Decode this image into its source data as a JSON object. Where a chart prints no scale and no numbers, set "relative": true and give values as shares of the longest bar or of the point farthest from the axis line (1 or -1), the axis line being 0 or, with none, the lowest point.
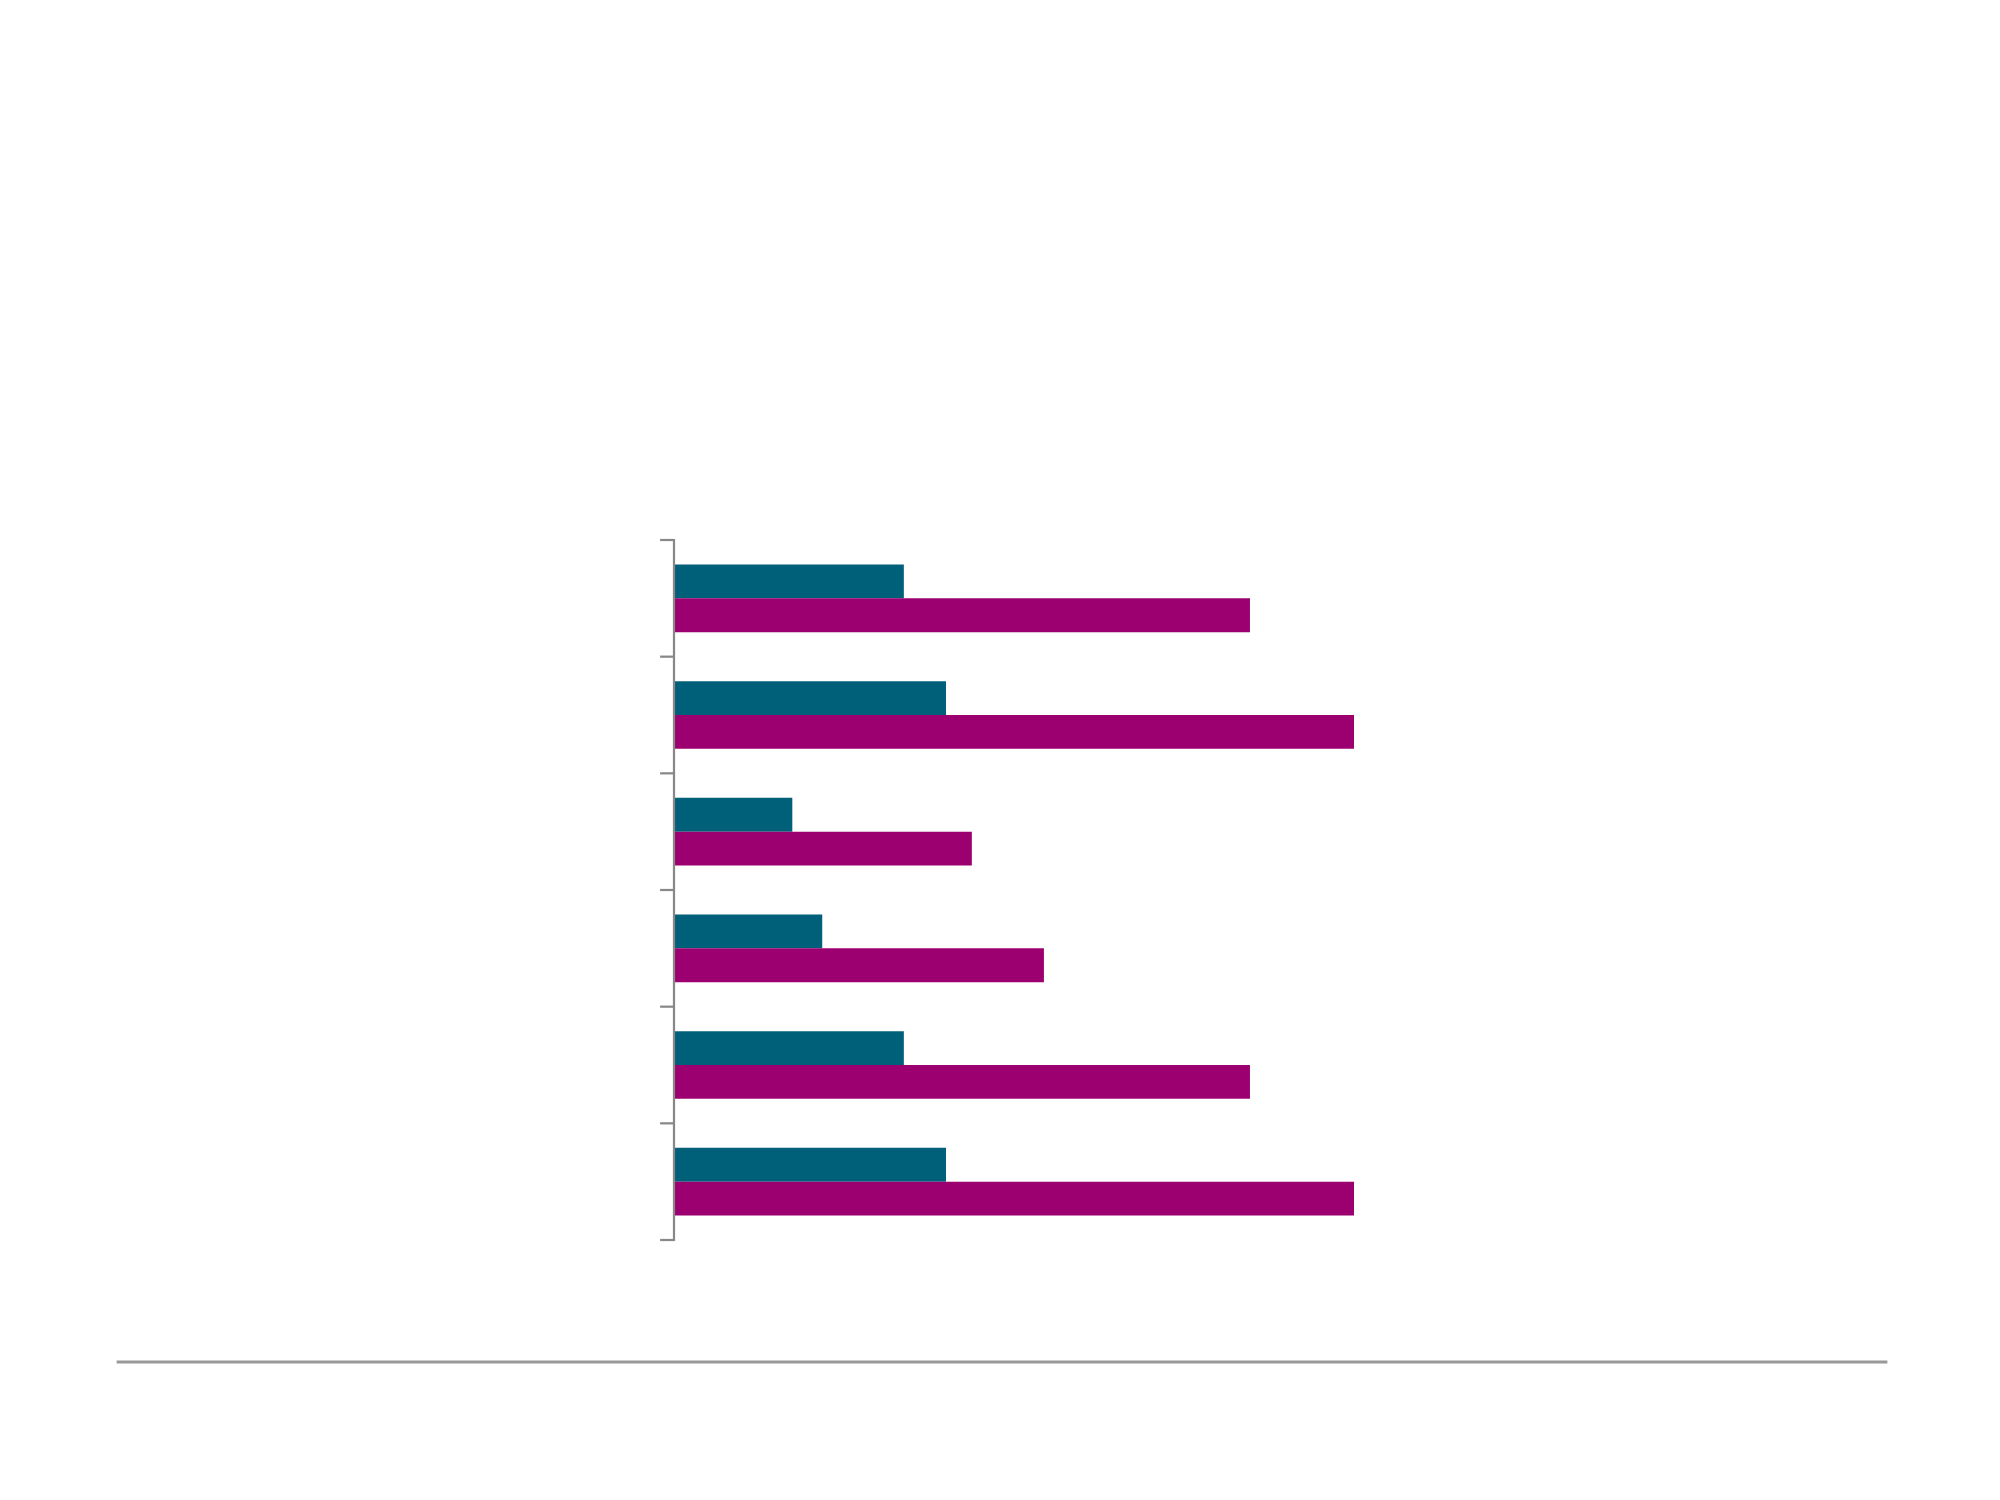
{
  "chart_data": {
    "type": "bar",
    "orientation": "horizontal",
    "relative": true,
    "categories": [
      null,
      null,
      null,
      null,
      null,
      null
    ],
    "series": [
      {
        "color": "#00607a",
        "values": [
          0.338,
          0.4,
          0.174,
          0.218,
          0.338,
          0.4
        ]
      },
      {
        "color": "#9c0070",
        "values": [
          0.847,
          1,
          0.438,
          0.544,
          0.847,
          1
        ]
      }
    ],
    "grid": false
  }
}
